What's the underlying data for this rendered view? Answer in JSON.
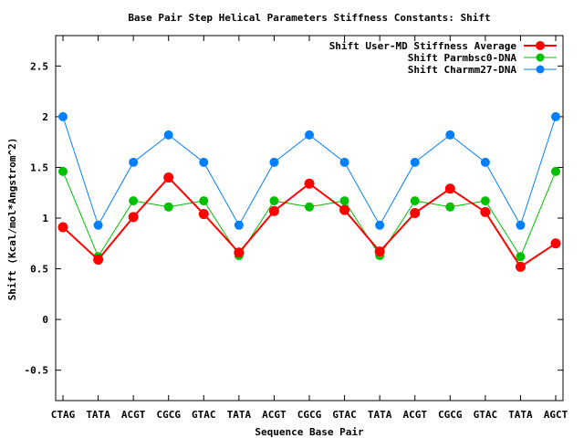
{
  "chart_data": {
    "type": "line",
    "title": "Base Pair Step Helical Parameters Stiffness Constants: Shift",
    "xlabel": "Sequence Base Pair",
    "ylabel": "Shift (Kcal/mol*Angstrom^2)",
    "categories": [
      "CTAG",
      "TATA",
      "ACGT",
      "CGCG",
      "GTAC",
      "TATA",
      "ACGT",
      "CGCG",
      "GTAC",
      "TATA",
      "ACGT",
      "CGCG",
      "GTAC",
      "TATA",
      "AGCT"
    ],
    "ylim": [
      -0.8,
      2.8
    ],
    "yticks": [
      -0.5,
      0,
      0.5,
      1,
      1.5,
      2,
      2.5
    ],
    "ytick_labels": [
      "-0.5",
      "0",
      "0.5",
      "1",
      "1.5",
      "2",
      "2.5"
    ],
    "grid": false,
    "legend_position": "top-right",
    "series": [
      {
        "name": "Shift User-MD Stiffness Average",
        "color": "#ff0000",
        "values": [
          0.91,
          0.59,
          1.01,
          1.4,
          1.04,
          0.66,
          1.07,
          1.34,
          1.08,
          0.67,
          1.05,
          1.29,
          1.06,
          0.52,
          0.75
        ]
      },
      {
        "name": "Shift Parmbsc0-DNA",
        "color": "#00c000",
        "values": [
          1.46,
          0.62,
          1.17,
          1.11,
          1.17,
          0.63,
          1.17,
          1.11,
          1.17,
          0.63,
          1.17,
          1.11,
          1.17,
          0.62,
          1.46
        ]
      },
      {
        "name": "Shift Charmm27-DNA",
        "color": "#0080ff",
        "values": [
          2.0,
          0.93,
          1.55,
          1.82,
          1.55,
          0.93,
          1.55,
          1.82,
          1.55,
          0.93,
          1.55,
          1.82,
          1.55,
          0.93,
          2.0
        ]
      }
    ]
  }
}
